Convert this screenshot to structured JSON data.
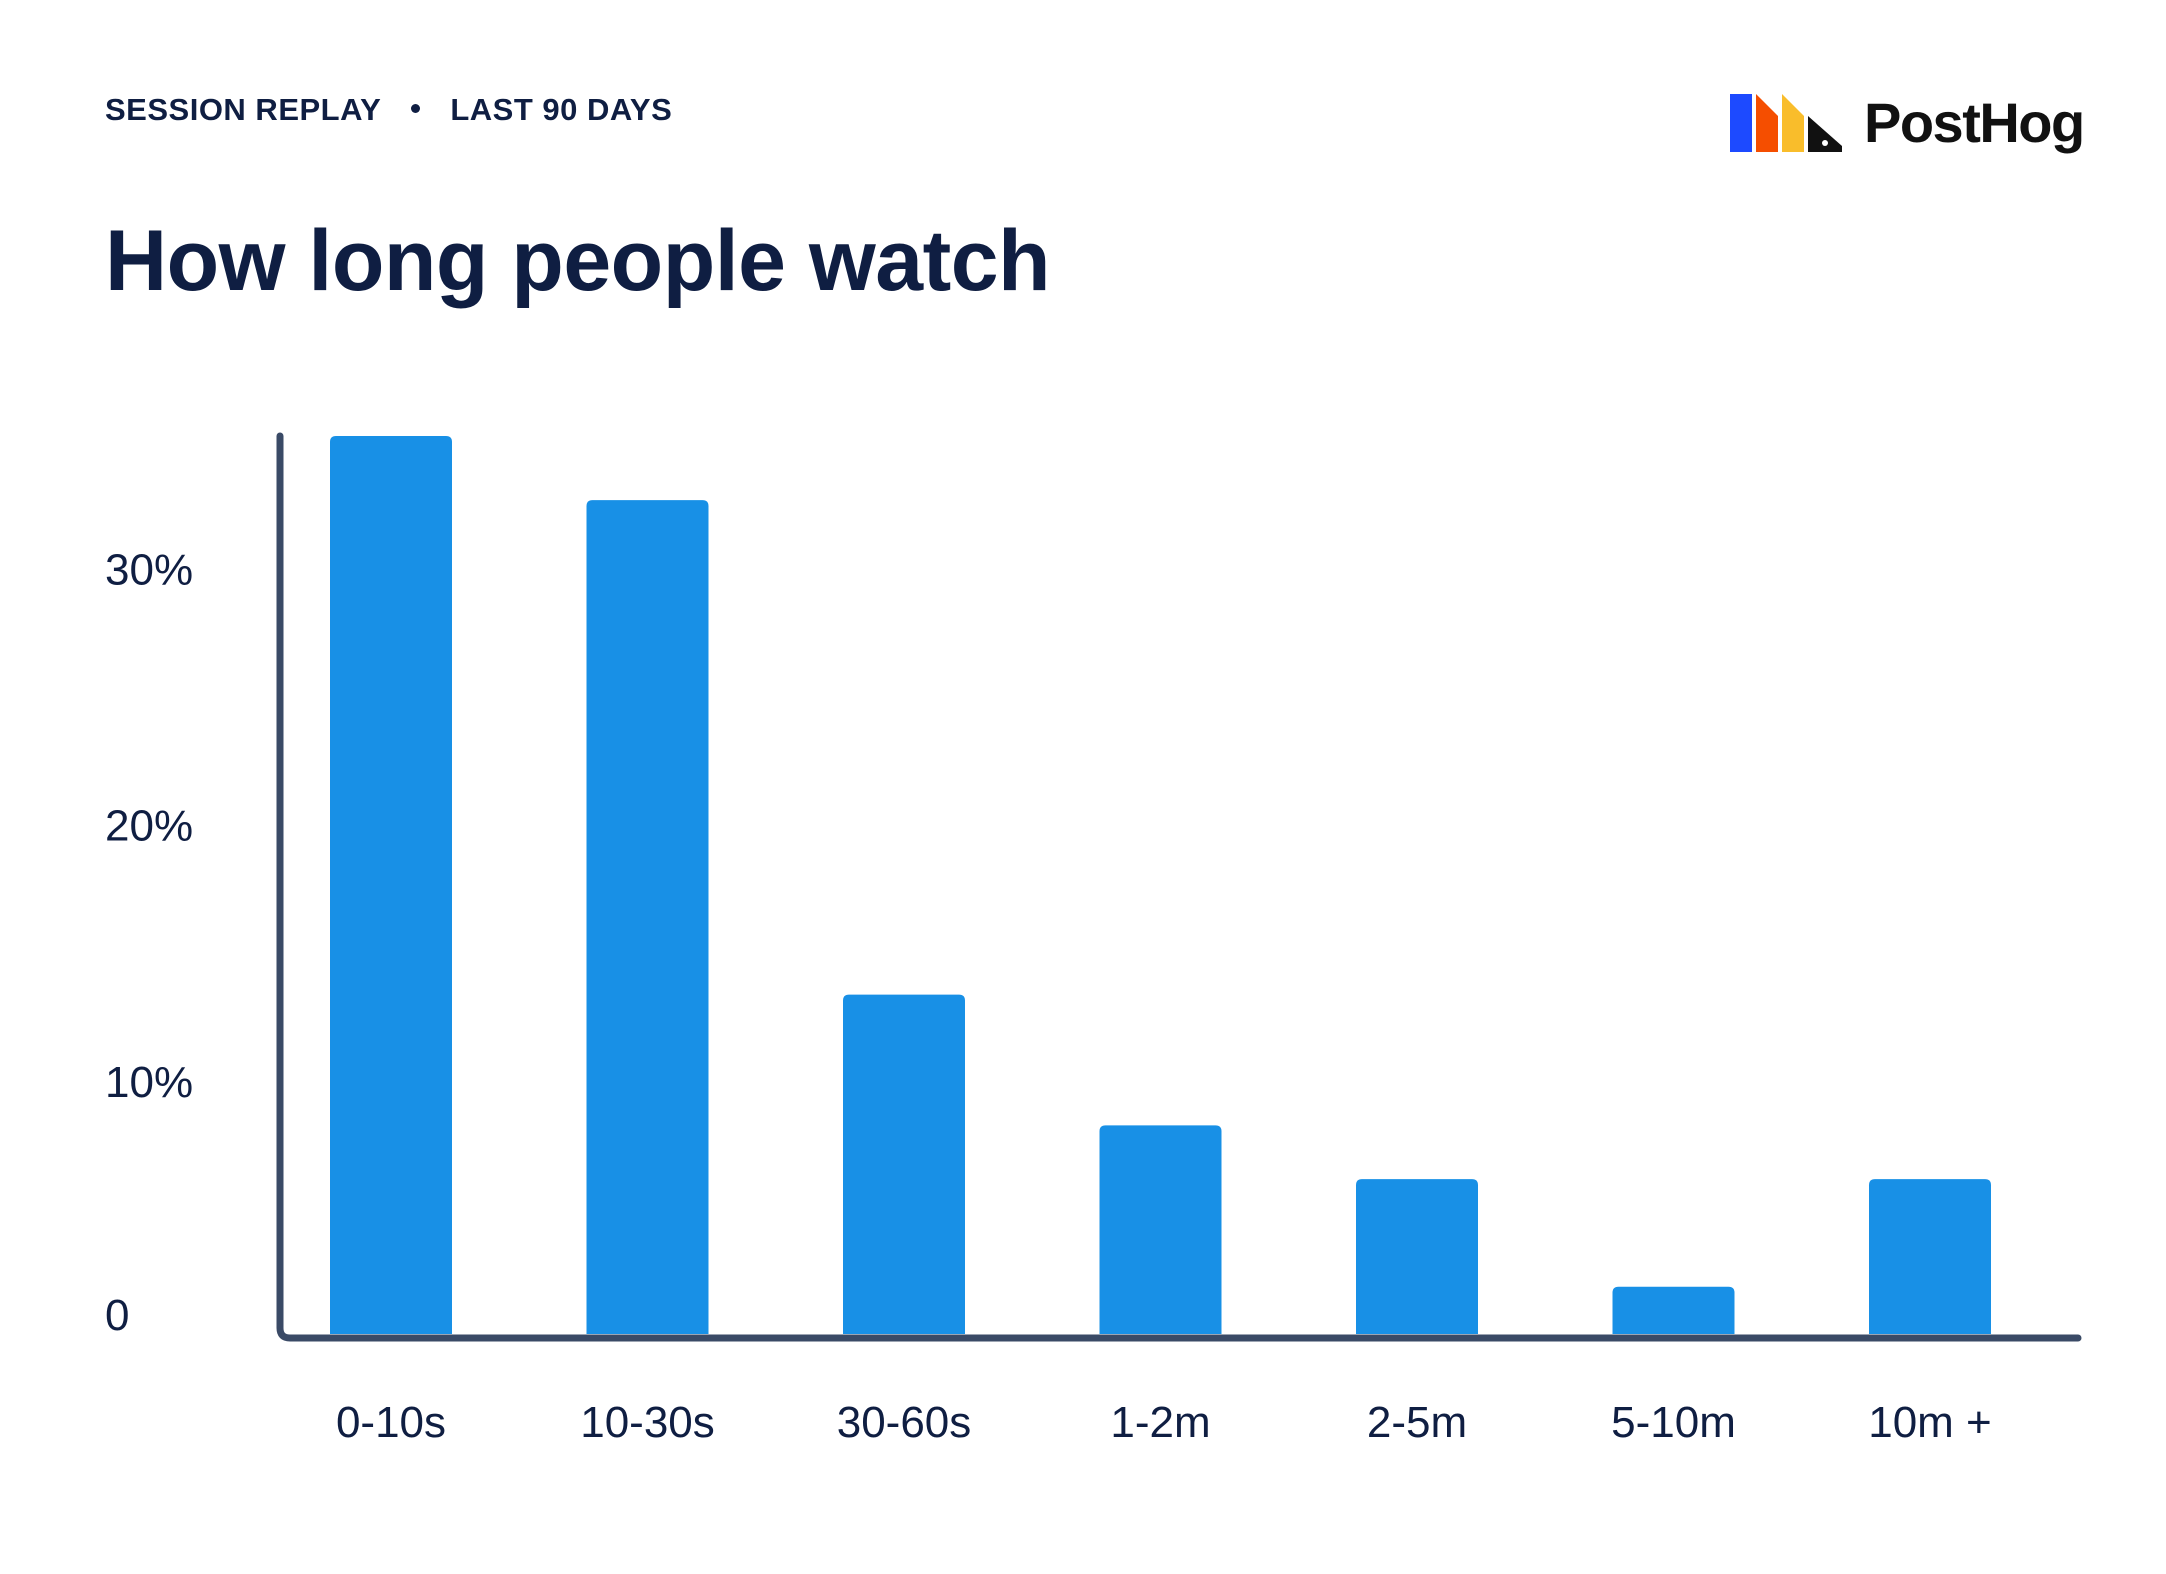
{
  "header": {
    "eyebrow_left": "SESSION REPLAY",
    "eyebrow_right": "LAST 90 DAYS",
    "title": "How long people watch",
    "brand": "PostHog"
  },
  "colors": {
    "bar": "#1890e6",
    "axis": "#3a4a66",
    "text": "#0f1e42",
    "logo_blue": "#1d4aff",
    "logo_orange": "#f54e00",
    "logo_yellow": "#f9bd2b"
  },
  "chart_data": {
    "type": "bar",
    "categories": [
      "0-10s",
      "10-30s",
      "30-60s",
      "1-2m",
      "2-5m",
      "5-10m",
      "10m +"
    ],
    "values": [
      35.2,
      32.7,
      13.4,
      8.3,
      6.2,
      2.0,
      6.2
    ],
    "ylim": [
      0,
      35.2
    ],
    "yticks": [
      0,
      10,
      20,
      30
    ],
    "ytick_labels": [
      "0",
      "10%",
      "20%",
      "30%"
    ],
    "xlabel": "",
    "ylabel": "",
    "grid": false,
    "legend": "none"
  }
}
